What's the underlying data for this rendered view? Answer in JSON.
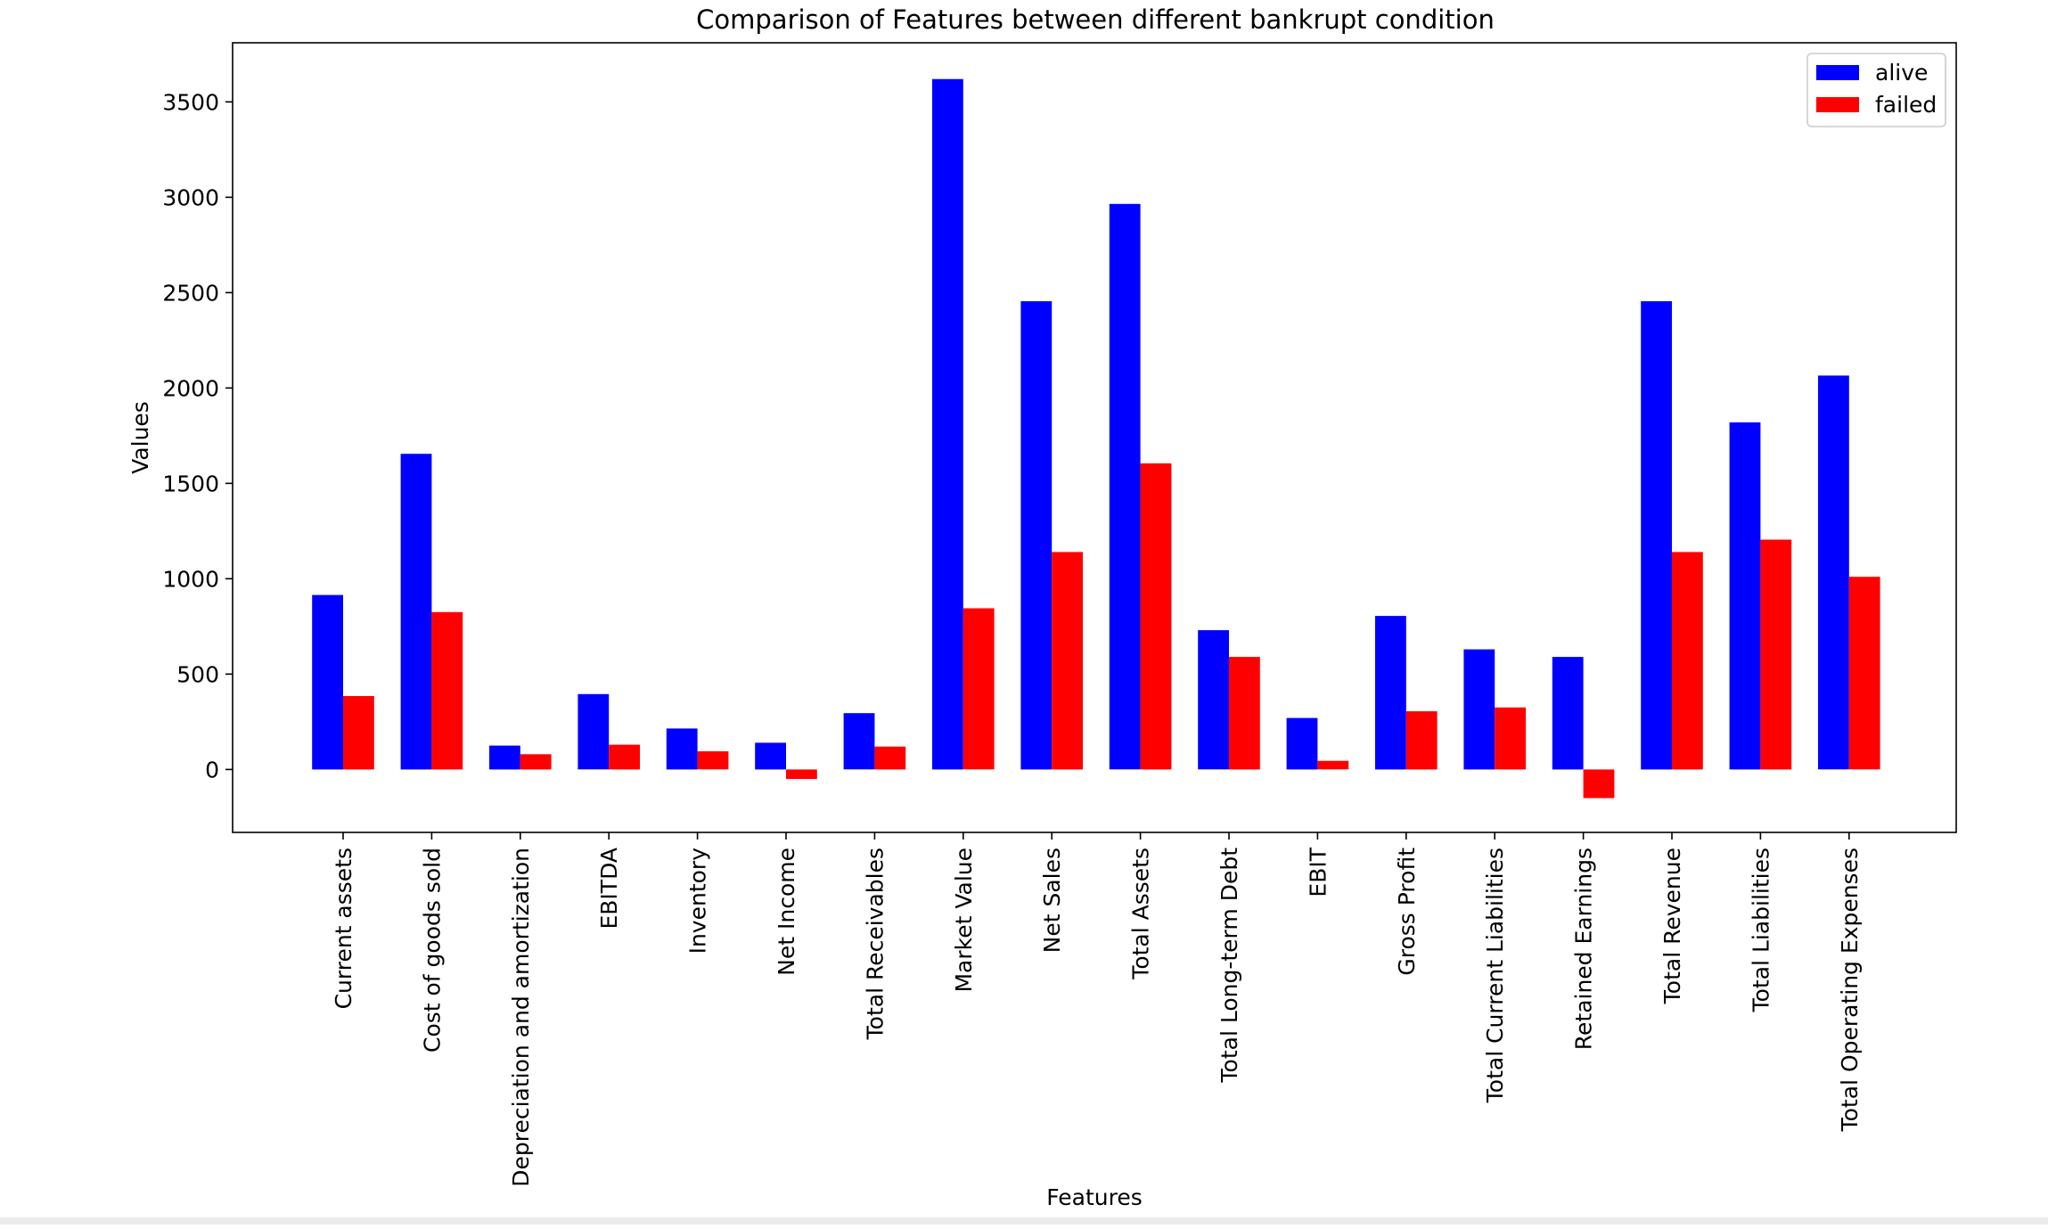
{
  "chart_data": {
    "type": "bar",
    "title": "Comparison of Features between different bankrupt condition",
    "xlabel": "Features",
    "ylabel": "Values",
    "ylim": [
      -330,
      3810
    ],
    "yticks": [
      0,
      500,
      1000,
      1500,
      2000,
      2500,
      3000,
      3500
    ],
    "grid": false,
    "legend_position": "top-right",
    "categories": [
      "Current assets",
      "Cost of goods sold",
      "Depreciation and amortization",
      "EBITDA",
      "Inventory",
      "Net Income",
      "Total Receivables",
      "Market Value",
      "Net Sales",
      "Total Assets",
      "Total Long-term Debt",
      "EBIT",
      "Gross Profit",
      "Total Current Liabilities",
      "Retained Earnings",
      "Total Revenue",
      "Total Liabilities",
      "Total Operating Expenses"
    ],
    "series": [
      {
        "name": "alive",
        "color": "#0000ff",
        "values": [
          915,
          1655,
          125,
          395,
          215,
          140,
          295,
          3620,
          2455,
          2965,
          730,
          270,
          805,
          630,
          590,
          2455,
          1820,
          2065
        ]
      },
      {
        "name": "failed",
        "color": "#ff0000",
        "values": [
          385,
          825,
          80,
          130,
          95,
          -50,
          120,
          845,
          1140,
          1605,
          590,
          45,
          305,
          325,
          -150,
          1140,
          1205,
          1010
        ]
      }
    ]
  }
}
